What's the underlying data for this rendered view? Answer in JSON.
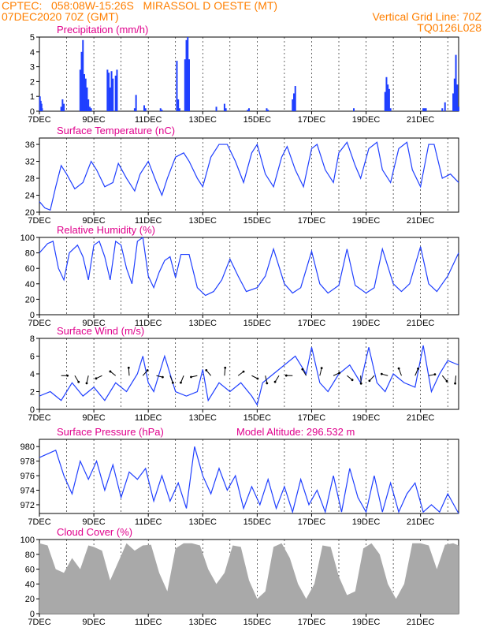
{
  "header": {
    "line1": "CPTEC:   058:08W-15:26S   MIRASSOL D OESTE (MT)",
    "line2_left": "07DEC2020 70Z (GMT)",
    "line2_right": "Vertical Grid Line: 70Z",
    "line3_right": "TQ0126L028"
  },
  "colors": {
    "header": "#ff7f00",
    "title": "#e0008c",
    "line": "#1f3fff",
    "bar": "#1f3fff",
    "cloud": "#a9a9a9",
    "arrow": "#000000"
  },
  "x_tick_labels": [
    "7DEC",
    "9DEC",
    "11DEC",
    "13DEC",
    "15DEC",
    "17DEC",
    "19DEC",
    "21DEC"
  ],
  "chart_data": [
    {
      "id": "precip",
      "type": "bar",
      "title": "Precipitation (mm/h)",
      "ylim": [
        0,
        5
      ],
      "yticks": [
        0,
        1,
        2,
        3,
        4,
        5
      ],
      "x": [
        0.02,
        0.05,
        0.08,
        0.1,
        0.8,
        0.85,
        0.9,
        1.5,
        1.55,
        1.6,
        1.65,
        1.7,
        1.75,
        1.8,
        1.85,
        1.9,
        2.5,
        2.55,
        2.6,
        2.65,
        2.7,
        2.8,
        2.85,
        3.5,
        3.55,
        3.85,
        3.9,
        4.45,
        4.5,
        5.05,
        5.1,
        5.15,
        5.35,
        5.4,
        5.45,
        5.5,
        6.5,
        6.8,
        6.85,
        7.65,
        7.7,
        8.35,
        8.4,
        9.3,
        9.35,
        9.4,
        11.55,
        12.7,
        12.75,
        12.8,
        12.85,
        12.9,
        14.1,
        14.15,
        14.2,
        15.2,
        15.25,
        15.3,
        15.35,
        15.4,
        14.8,
        14.9
      ],
      "values": [
        1.0,
        0.7,
        0.5,
        0.2,
        0.3,
        0.8,
        0.5,
        2.8,
        4.0,
        4.8,
        2.5,
        2.2,
        1.6,
        0.8,
        0.3,
        0.2,
        2.8,
        2.6,
        1.6,
        2.7,
        2.2,
        2.4,
        2.8,
        0.2,
        1.1,
        0.4,
        0.2,
        0.2,
        0.1,
        3.4,
        0.8,
        0.2,
        3.5,
        4.8,
        5.0,
        3.5,
        0.3,
        0.5,
        0.2,
        0.1,
        0.2,
        0.2,
        0.1,
        0.8,
        1.2,
        1.7,
        0.2,
        1.3,
        2.3,
        1.8,
        1.5,
        0.2,
        0.2,
        0.2,
        0.2,
        1.2,
        2.2,
        3.8,
        1.8,
        0.3,
        0.2,
        0.6
      ],
      "xlim": [
        0,
        15.4
      ]
    },
    {
      "id": "temp",
      "type": "line",
      "title": "Surface Temperature (nC)",
      "ylim": [
        20,
        37.5
      ],
      "yticks": [
        20,
        24,
        28,
        32,
        36
      ],
      "x": [
        0,
        0.2,
        0.4,
        0.6,
        0.8,
        1.0,
        1.3,
        1.6,
        1.9,
        2.1,
        2.4,
        2.7,
        2.9,
        3.2,
        3.5,
        3.7,
        4.0,
        4.3,
        4.5,
        4.7,
        5.0,
        5.3,
        5.5,
        5.8,
        6.0,
        6.3,
        6.6,
        6.9,
        7.2,
        7.5,
        7.8,
        8.0,
        8.3,
        8.6,
        8.9,
        9.1,
        9.4,
        9.7,
        10.0,
        10.2,
        10.5,
        10.8,
        11.0,
        11.3,
        11.6,
        11.8,
        12.1,
        12.4,
        12.6,
        12.9,
        13.2,
        13.5,
        13.7,
        14.0,
        14.3,
        14.5,
        14.8,
        15.1,
        15.4
      ],
      "values": [
        22.5,
        21,
        20.5,
        26,
        31,
        29,
        25.5,
        27,
        32,
        30,
        26,
        27,
        31.5,
        28,
        25,
        29,
        32,
        27,
        24,
        28,
        33,
        34,
        32,
        28,
        26,
        33,
        36,
        36,
        32,
        27,
        34,
        36,
        29,
        26,
        33,
        35.5,
        30,
        26,
        35,
        36,
        30,
        27,
        34,
        36.5,
        31,
        28,
        35,
        36.5,
        30,
        27,
        35,
        36.5,
        30,
        26,
        36,
        36,
        28,
        29,
        27
      ]
    },
    {
      "id": "rh",
      "type": "line",
      "title": "Relative Humidity (%)",
      "ylim": [
        0,
        100
      ],
      "yticks": [
        0,
        20,
        40,
        60,
        80,
        100
      ],
      "x": [
        0,
        0.3,
        0.5,
        0.7,
        0.9,
        1.1,
        1.4,
        1.6,
        1.8,
        2.0,
        2.2,
        2.4,
        2.6,
        2.8,
        3.0,
        3.2,
        3.4,
        3.6,
        3.8,
        4.0,
        4.2,
        4.4,
        4.6,
        4.8,
        5.0,
        5.2,
        5.5,
        5.8,
        6.1,
        6.4,
        6.7,
        7.0,
        7.3,
        7.6,
        8.0,
        8.3,
        8.6,
        9.0,
        9.3,
        9.6,
        10.0,
        10.3,
        10.6,
        11.0,
        11.3,
        11.6,
        12.0,
        12.3,
        12.6,
        13.0,
        13.3,
        13.6,
        14.0,
        14.3,
        14.6,
        15.0,
        15.4
      ],
      "values": [
        80,
        92,
        95,
        60,
        45,
        80,
        90,
        75,
        45,
        90,
        95,
        75,
        45,
        95,
        90,
        60,
        40,
        95,
        100,
        50,
        35,
        55,
        70,
        75,
        48,
        78,
        78,
        35,
        25,
        30,
        45,
        72,
        50,
        30,
        35,
        50,
        85,
        40,
        28,
        35,
        82,
        40,
        28,
        38,
        85,
        38,
        28,
        35,
        85,
        40,
        30,
        40,
        88,
        40,
        30,
        50,
        80
      ]
    },
    {
      "id": "wind",
      "type": "line",
      "title": "Surface Wind (m/s)",
      "ylim": [
        0,
        8
      ],
      "yticks": [
        0,
        2,
        4,
        6,
        8
      ],
      "x": [
        0,
        0.4,
        0.8,
        1.2,
        1.6,
        2.0,
        2.4,
        2.8,
        3.2,
        3.6,
        3.8,
        4.0,
        4.2,
        4.4,
        4.6,
        5.0,
        5.4,
        5.8,
        6.0,
        6.2,
        6.6,
        7.0,
        7.4,
        7.8,
        8.0,
        8.2,
        8.6,
        9.0,
        9.4,
        9.8,
        10.0,
        10.3,
        10.6,
        11.0,
        11.4,
        11.8,
        12.1,
        12.4,
        12.7,
        13.0,
        13.4,
        13.8,
        14.1,
        14.4,
        14.7,
        15.0,
        15.4
      ],
      "values": [
        1.5,
        2,
        1,
        3,
        1.5,
        2.5,
        1,
        3,
        2,
        4,
        6,
        3,
        2,
        4,
        6,
        2,
        1.5,
        2,
        4.5,
        1,
        3,
        2,
        3,
        1.5,
        0.5,
        3,
        4,
        5,
        6,
        4,
        7,
        3,
        2,
        4,
        5,
        3,
        7,
        3,
        2,
        4,
        3,
        2.5,
        7.2,
        2,
        4,
        5.5,
        5
      ]
    },
    {
      "id": "pres",
      "type": "line",
      "title": "Surface Pressure (hPa)",
      "annotation": "Model Altitude: 296.532  m",
      "ylim": [
        970.8,
        981
      ],
      "yticks": [
        972,
        974,
        976,
        978,
        980
      ],
      "x": [
        0,
        0.3,
        0.6,
        0.9,
        1.2,
        1.5,
        1.8,
        2.1,
        2.4,
        2.7,
        3.0,
        3.3,
        3.6,
        3.9,
        4.2,
        4.5,
        4.8,
        5.1,
        5.4,
        5.7,
        6.0,
        6.3,
        6.6,
        6.9,
        7.2,
        7.5,
        7.8,
        8.1,
        8.4,
        8.7,
        9.0,
        9.3,
        9.6,
        9.9,
        10.2,
        10.5,
        10.8,
        11.1,
        11.4,
        11.7,
        12.0,
        12.3,
        12.6,
        12.9,
        13.2,
        13.5,
        13.8,
        14.1,
        14.4,
        14.7,
        15.0,
        15.4
      ],
      "values": [
        978.5,
        979,
        979.5,
        976,
        973.5,
        978,
        975.5,
        978,
        974,
        977.5,
        973,
        976.5,
        975.5,
        977,
        972.5,
        976,
        972.5,
        975,
        971.5,
        980,
        976,
        973.5,
        977,
        974,
        976,
        971.5,
        974.5,
        972,
        975.5,
        971.5,
        974.5,
        971,
        975.5,
        972,
        974,
        971,
        976,
        971,
        977,
        973,
        971,
        976,
        971,
        975,
        971,
        973.5,
        975,
        971,
        972,
        971,
        973.5,
        970.5
      ]
    },
    {
      "id": "cloud",
      "type": "area",
      "title": "Cloud Cover (%)",
      "ylim": [
        0,
        100
      ],
      "yticks": [
        0,
        20,
        40,
        60,
        80,
        100
      ],
      "x": [
        0,
        0.3,
        0.6,
        0.9,
        1.2,
        1.5,
        1.8,
        2.0,
        2.3,
        2.6,
        2.9,
        3.2,
        3.5,
        3.8,
        4.1,
        4.4,
        4.7,
        5.0,
        5.3,
        5.6,
        5.9,
        6.2,
        6.5,
        6.8,
        7.1,
        7.4,
        7.7,
        8.0,
        8.3,
        8.6,
        8.9,
        9.2,
        9.5,
        9.8,
        10.1,
        10.4,
        10.7,
        11.0,
        11.3,
        11.6,
        11.9,
        12.2,
        12.5,
        12.8,
        13.1,
        13.4,
        13.7,
        14.0,
        14.3,
        14.6,
        14.9,
        15.2,
        15.4
      ],
      "values": [
        95,
        92,
        60,
        55,
        75,
        60,
        92,
        90,
        85,
        45,
        70,
        95,
        85,
        92,
        93,
        55,
        30,
        88,
        95,
        95,
        92,
        60,
        40,
        55,
        92,
        90,
        45,
        20,
        30,
        90,
        95,
        75,
        40,
        20,
        40,
        92,
        90,
        50,
        25,
        30,
        88,
        95,
        80,
        40,
        20,
        40,
        95,
        95,
        92,
        60,
        93,
        95,
        92
      ]
    }
  ]
}
